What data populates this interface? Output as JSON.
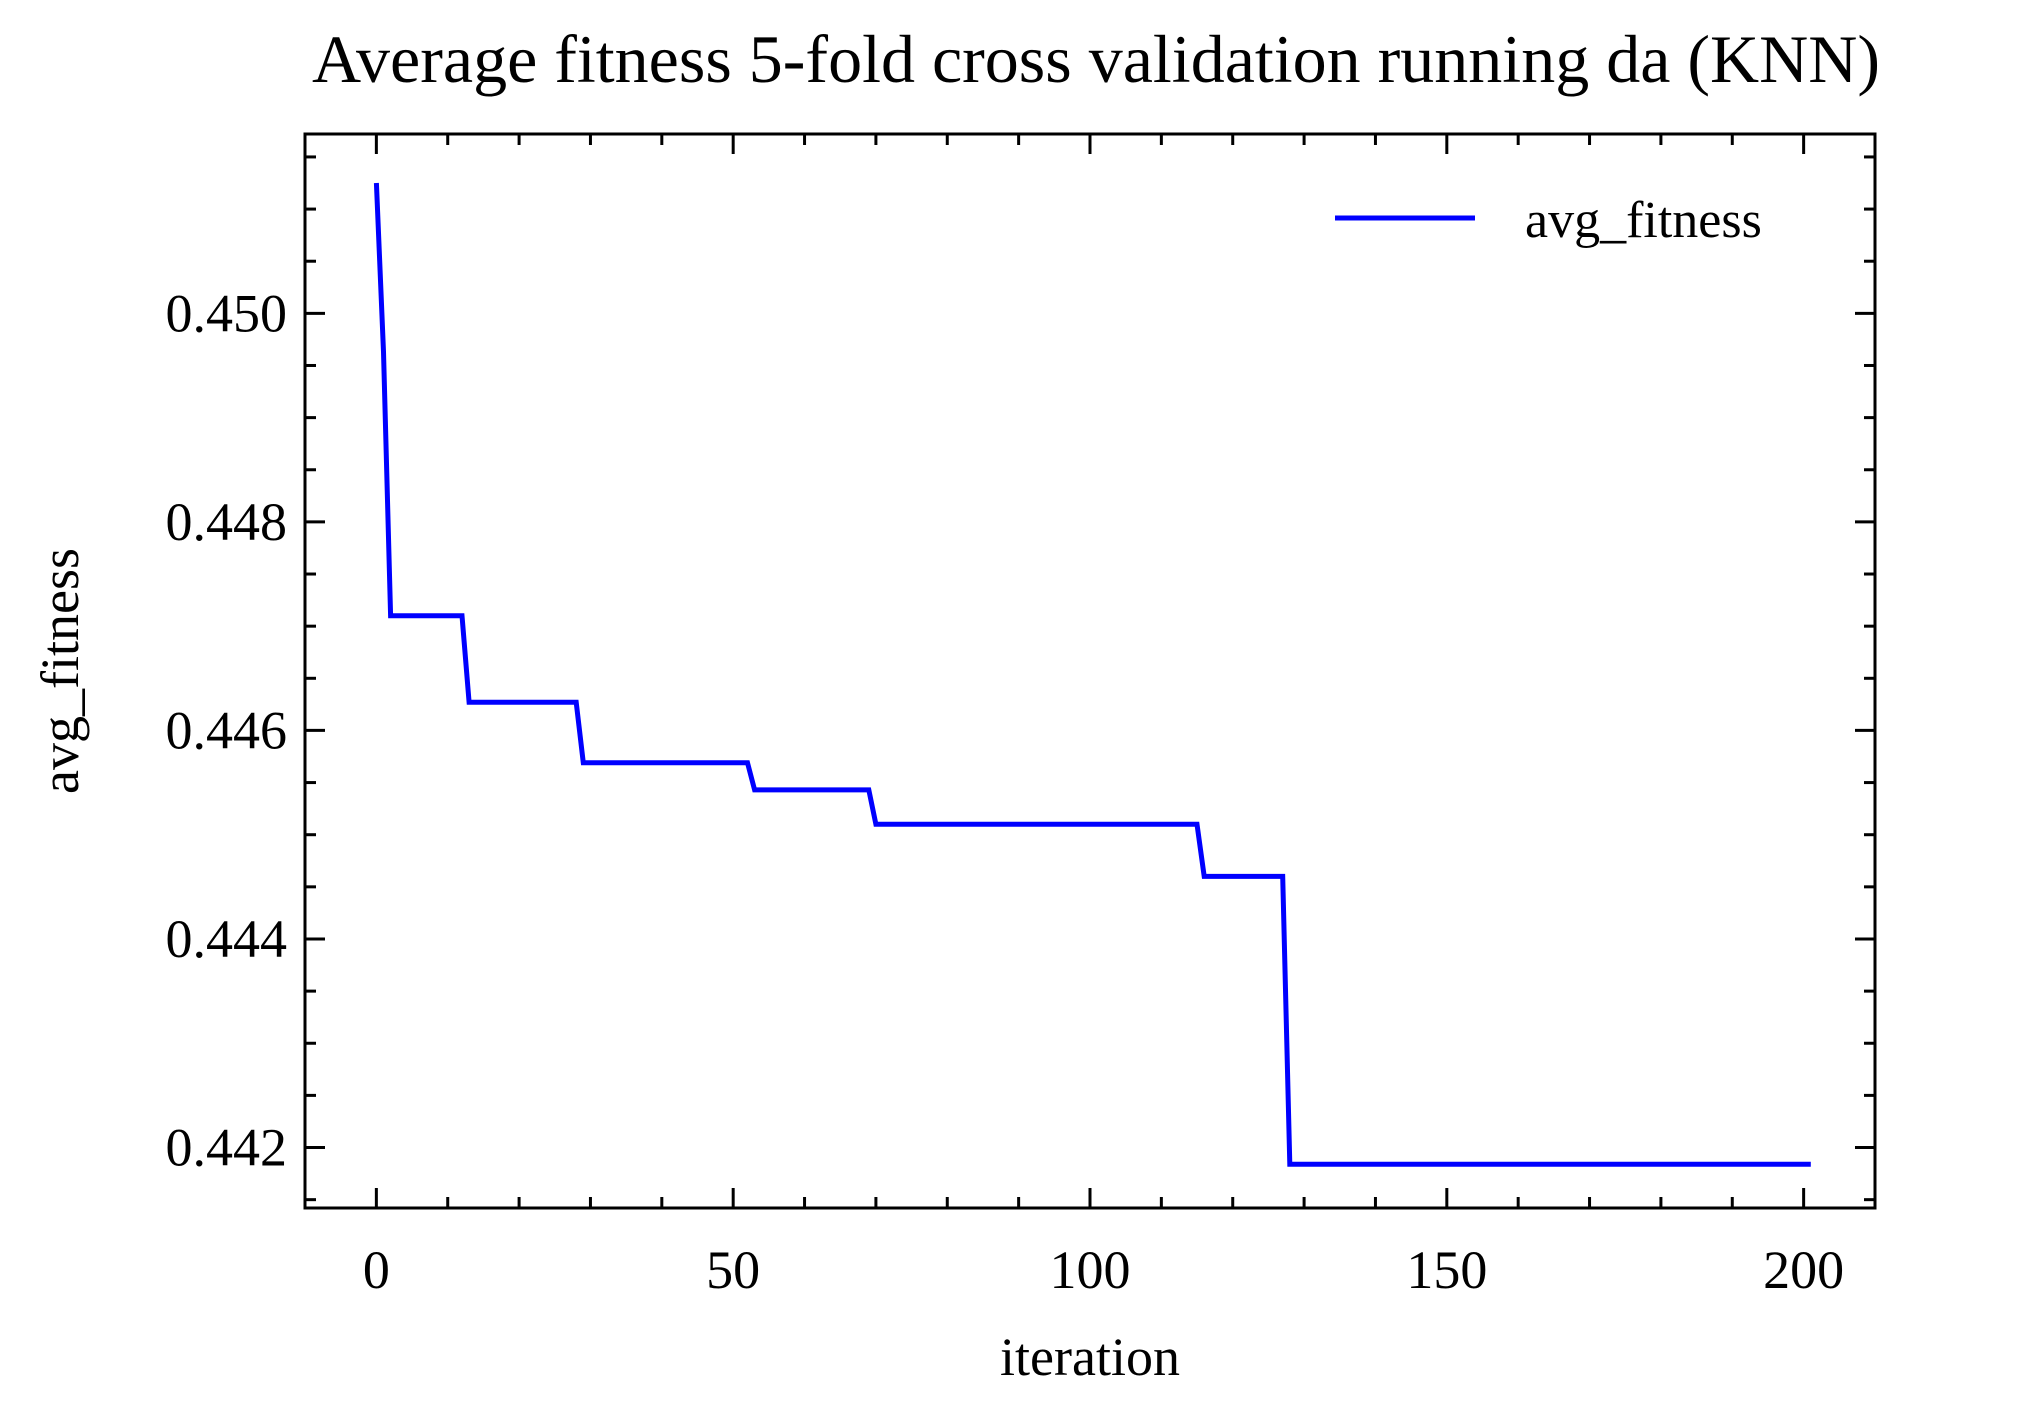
{
  "chart_data": {
    "type": "line",
    "title": "Average fitness 5-fold cross validation running da (KNN)",
    "xlabel": "iteration",
    "ylabel": "avg_fitness",
    "xlim": [
      -10,
      210
    ],
    "ylim": [
      0.44142,
      0.45172
    ],
    "x_ticks": [
      0,
      50,
      100,
      150,
      200
    ],
    "x_tick_labels": [
      "0",
      "50",
      "100",
      "150",
      "200"
    ],
    "x_minor_step": 10,
    "y_ticks": [
      0.442,
      0.444,
      0.446,
      0.448,
      0.45
    ],
    "y_tick_labels": [
      "0.442",
      "0.444",
      "0.446",
      "0.448",
      "0.450"
    ],
    "y_minor_step": 0.0005,
    "grid": false,
    "legend_position": "top-right",
    "series": [
      {
        "name": "avg_fitness",
        "color": "#0000ff",
        "x": [
          0,
          1,
          2,
          12,
          13,
          28,
          29,
          52,
          53,
          69,
          70,
          115,
          116,
          127,
          128,
          201
        ],
        "y": [
          0.45125,
          0.44963,
          0.4471,
          0.4471,
          0.44627,
          0.44627,
          0.44569,
          0.44569,
          0.44543,
          0.44543,
          0.4451,
          0.4451,
          0.4446,
          0.4446,
          0.44184,
          0.44184
        ]
      }
    ]
  }
}
